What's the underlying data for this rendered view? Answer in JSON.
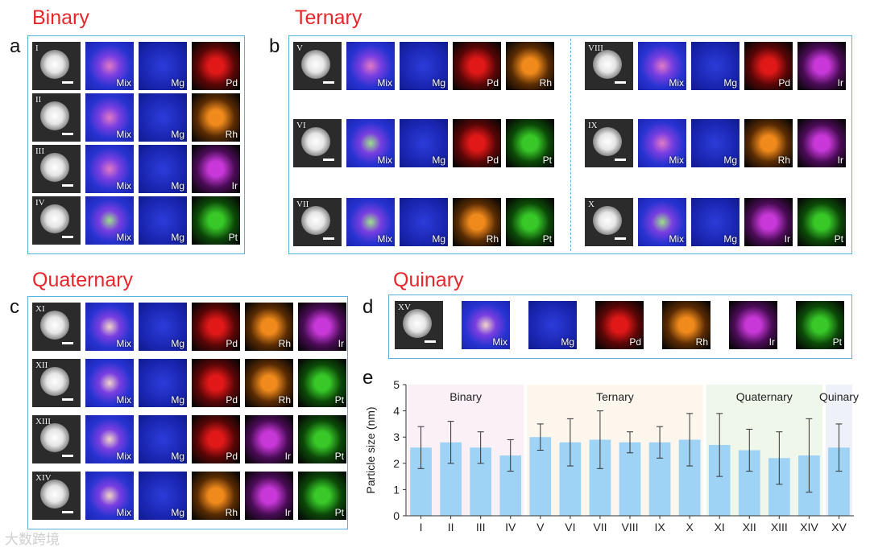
{
  "sections": {
    "binary": {
      "title": "Binary",
      "letter": "a"
    },
    "ternary": {
      "title": "Ternary",
      "letter": "b"
    },
    "quaternary": {
      "title": "Quaternary",
      "letter": "c"
    },
    "quinary": {
      "title": "Quinary",
      "letter": "d"
    },
    "chart_letter": "e"
  },
  "rows": {
    "I": {
      "numeral": "I",
      "labels": [
        "Mix",
        "Mg",
        "Pd"
      ]
    },
    "II": {
      "numeral": "II",
      "labels": [
        "Mix",
        "Mg",
        "Rh"
      ]
    },
    "III": {
      "numeral": "III",
      "labels": [
        "Mix",
        "Mg",
        "Ir"
      ]
    },
    "IV": {
      "numeral": "IV",
      "labels": [
        "Mix",
        "Mg",
        "Pt"
      ]
    },
    "V": {
      "numeral": "V",
      "labels": [
        "Mix",
        "Mg",
        "Pd",
        "Rh"
      ]
    },
    "VI": {
      "numeral": "VI",
      "labels": [
        "Mix",
        "Mg",
        "Pd",
        "Pt"
      ]
    },
    "VII": {
      "numeral": "VII",
      "labels": [
        "Mix",
        "Mg",
        "Rh",
        "Pt"
      ]
    },
    "VIII": {
      "numeral": "VIII",
      "labels": [
        "Mix",
        "Mg",
        "Pd",
        "Ir"
      ]
    },
    "IX": {
      "numeral": "IX",
      "labels": [
        "Mix",
        "Mg",
        "Rh",
        "Ir"
      ]
    },
    "X": {
      "numeral": "X",
      "labels": [
        "Mix",
        "Mg",
        "Ir",
        "Pt"
      ]
    },
    "XI": {
      "numeral": "XI",
      "labels": [
        "Mix",
        "Mg",
        "Pd",
        "Rh",
        "Ir"
      ]
    },
    "XII": {
      "numeral": "XII",
      "labels": [
        "Mix",
        "Mg",
        "Pd",
        "Rh",
        "Pt"
      ]
    },
    "XIII": {
      "numeral": "XIII",
      "labels": [
        "Mix",
        "Mg",
        "Pd",
        "Ir",
        "Pt"
      ]
    },
    "XIV": {
      "numeral": "XIV",
      "labels": [
        "Mix",
        "Mg",
        "Rh",
        "Ir",
        "Pt"
      ]
    },
    "XV": {
      "numeral": "XV",
      "labels": [
        "Mix",
        "Mg",
        "Pd",
        "Rh",
        "Ir",
        "Pt"
      ]
    }
  },
  "element_colors": {
    "Pd": "#e01818",
    "Rh": "#f08a1c",
    "Ir": "#c838d8",
    "Pt": "#38c828",
    "Mg": "#2233cc"
  },
  "watermark": "大数跨境",
  "chart_data": {
    "type": "bar",
    "ylabel": "Particle size (nm)",
    "ylim": [
      0,
      5
    ],
    "yticks": [
      "0",
      "1",
      "2",
      "3",
      "4",
      "5"
    ],
    "categories": [
      "I",
      "II",
      "III",
      "IV",
      "V",
      "VI",
      "VII",
      "VIII",
      "IX",
      "X",
      "XI",
      "XII",
      "XIII",
      "XIV",
      "XV"
    ],
    "values": [
      2.6,
      2.8,
      2.6,
      2.3,
      3.0,
      2.8,
      2.9,
      2.8,
      2.8,
      2.9,
      2.7,
      2.5,
      2.2,
      2.3,
      2.6
    ],
    "errors": [
      0.8,
      0.8,
      0.6,
      0.6,
      0.5,
      0.9,
      1.1,
      0.4,
      0.6,
      1.0,
      1.2,
      0.8,
      1.0,
      1.4,
      0.9
    ],
    "bar_color": "#9fd3f5",
    "groups": [
      {
        "label": "Binary",
        "from": 0,
        "to": 3,
        "bg": "#fbf0f5"
      },
      {
        "label": "Ternary",
        "from": 4,
        "to": 9,
        "bg": "#fcf6ec"
      },
      {
        "label": "Quaternary",
        "from": 10,
        "to": 13,
        "bg": "#eff7ea"
      },
      {
        "label": "Quinary",
        "from": 14,
        "to": 14,
        "bg": "#eef2f8"
      }
    ]
  }
}
